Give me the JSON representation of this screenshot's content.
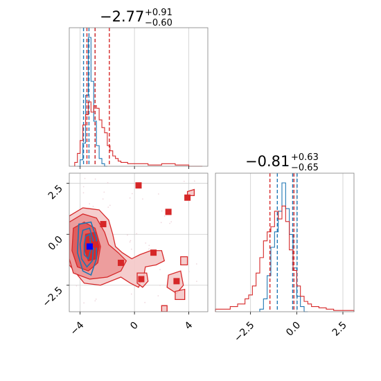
{
  "chart_data": [
    {
      "type": "histogram",
      "panel": "top-left",
      "parameter_index": 0,
      "title_main": "−2.77",
      "title_sup": "+0.91",
      "title_sub": "−0.60",
      "xlim": [
        -4.8,
        5.4
      ],
      "grid": true,
      "series": [
        {
          "color": "#1f77b4",
          "bin_edges": [
            -4.2,
            -4.0,
            -3.8,
            -3.6,
            -3.4,
            -3.2,
            -3.0,
            -2.8,
            -2.6,
            -2.4,
            -2.2,
            -2.0
          ],
          "counts": [
            0.0,
            0.05,
            0.18,
            0.55,
            1.0,
            0.66,
            0.35,
            0.16,
            0.06,
            0.02,
            0.0
          ],
          "quantile_lines": [
            -3.75,
            -3.35,
            -2.9
          ]
        },
        {
          "color": "#d62728",
          "bin_edges": [
            -4.4,
            -4.2,
            -4.0,
            -3.8,
            -3.6,
            -3.4,
            -3.2,
            -3.0,
            -2.8,
            -2.6,
            -2.4,
            -2.2,
            -2.0,
            -1.8,
            -1.6,
            -1.4,
            -1.2,
            -1.0,
            -0.5,
            0.0,
            1.0,
            2.0,
            3.0,
            4.0,
            5.0
          ],
          "counts": [
            0.03,
            0.1,
            0.2,
            0.32,
            0.4,
            0.5,
            0.42,
            0.47,
            0.45,
            0.36,
            0.3,
            0.26,
            0.16,
            0.12,
            0.08,
            0.06,
            0.04,
            0.03,
            0.02,
            0.02,
            0.01,
            0.02,
            0.01,
            0.0
          ],
          "quantile_lines": [
            -3.5,
            -2.9,
            -1.85
          ]
        }
      ],
      "xticks": []
    },
    {
      "type": "contour",
      "panel": "bottom-left",
      "xlim": [
        -4.8,
        5.4
      ],
      "ylim": [
        -3.8,
        3.0
      ],
      "grid": true,
      "xticks": [
        {
          "v": -4,
          "label": "−4"
        },
        {
          "v": 0,
          "label": "0"
        },
        {
          "v": 4,
          "label": "4"
        }
      ],
      "yticks": [
        {
          "v": 2.5,
          "label": "2.5"
        },
        {
          "v": 0.0,
          "label": "0.0"
        },
        {
          "v": -2.5,
          "label": "−2.5"
        }
      ],
      "red_points": [
        [
          0.3,
          2.4
        ],
        [
          2.5,
          1.1
        ],
        [
          3.9,
          1.8
        ],
        [
          -2.3,
          0.5
        ],
        [
          -2.9,
          -0.5
        ],
        [
          -1.0,
          -1.4
        ],
        [
          1.4,
          -0.9
        ],
        [
          0.5,
          -2.2
        ],
        [
          3.1,
          -2.3
        ]
      ],
      "blue_points": [
        [
          -3.3,
          -0.6
        ]
      ],
      "red_color": "#d62728",
      "blue_color": "#1f77b4"
    },
    {
      "type": "histogram",
      "panel": "bottom-right",
      "parameter_index": 1,
      "title_main": "−0.81",
      "title_sup": "+0.63",
      "title_sub": "−0.65",
      "xlim": [
        -4.4,
        3.1
      ],
      "grid": true,
      "xticks": [
        {
          "v": -2.5,
          "label": "−2.5"
        },
        {
          "v": 0.0,
          "label": "0.0"
        },
        {
          "v": 2.5,
          "label": "2.5"
        }
      ],
      "series": [
        {
          "color": "#1f77b4",
          "bin_edges": [
            -2.0,
            -1.8,
            -1.6,
            -1.4,
            -1.2,
            -1.0,
            -0.8,
            -0.6,
            -0.4,
            -0.2,
            0.0,
            0.2,
            0.4,
            0.6
          ],
          "counts": [
            0.02,
            0.1,
            0.28,
            0.5,
            0.62,
            0.78,
            1.0,
            0.8,
            0.6,
            0.34,
            0.12,
            0.04,
            0.0
          ],
          "quantile_lines": [
            -1.05,
            -0.22,
            0.02
          ]
        },
        {
          "color": "#d62728",
          "bin_edges": [
            -4.4,
            -3.6,
            -3.2,
            -2.8,
            -2.6,
            -2.4,
            -2.2,
            -2.0,
            -1.8,
            -1.6,
            -1.4,
            -1.2,
            -1.0,
            -0.8,
            -0.6,
            -0.4,
            -0.2,
            0.0,
            0.2,
            0.4,
            0.6,
            0.8,
            1.2,
            1.6,
            2.0,
            3.1
          ],
          "counts": [
            0.02,
            0.04,
            0.06,
            0.1,
            0.13,
            0.2,
            0.3,
            0.42,
            0.55,
            0.62,
            0.66,
            0.78,
            0.72,
            0.82,
            0.7,
            0.48,
            0.32,
            0.2,
            0.12,
            0.08,
            0.06,
            0.04,
            0.03,
            0.02,
            0.01
          ],
          "quantile_lines": [
            -1.45,
            -0.15
          ]
        }
      ]
    }
  ]
}
